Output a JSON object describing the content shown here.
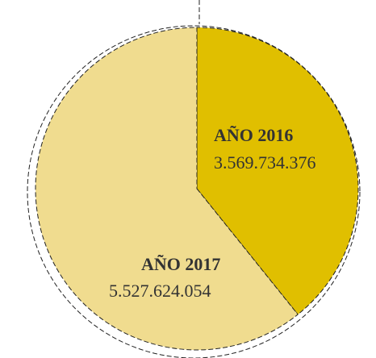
{
  "chart_data": {
    "type": "pie",
    "categories": [
      "AÑO 2016",
      "AÑO 2017"
    ],
    "values": [
      3569734376,
      5527624054
    ],
    "value_labels": [
      "3.569.734.376",
      "5.527.624.054"
    ],
    "colors": [
      "#e0bf00",
      "#f0dc8f"
    ]
  }
}
